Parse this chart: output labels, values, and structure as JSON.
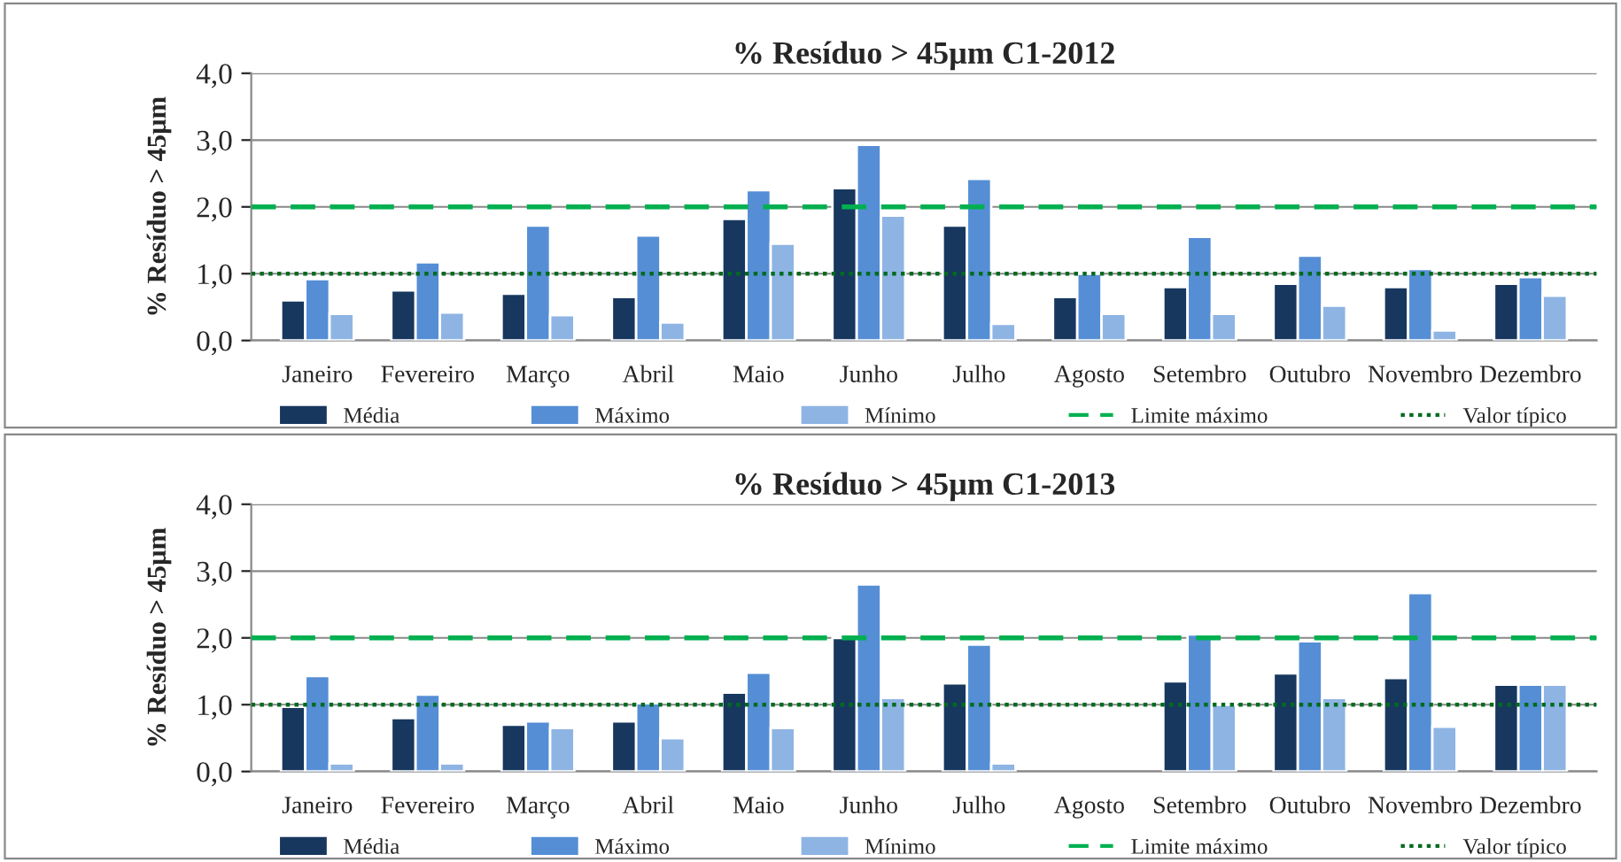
{
  "chart_data": [
    {
      "type": "bar",
      "title": "% Resíduo > 45µm C1-2012",
      "ylabel": "% Resíduo > 45µm",
      "categories": [
        "Janeiro",
        "Fevereiro",
        "Março",
        "Abril",
        "Maio",
        "Junho",
        "Julho",
        "Agosto",
        "Setembro",
        "Outubro",
        "Novembro",
        "Dezembro"
      ],
      "series": [
        {
          "name": "Média",
          "color": "#17375e",
          "values": [
            0.6,
            0.75,
            0.7,
            0.65,
            1.82,
            2.28,
            1.72,
            0.65,
            0.8,
            0.85,
            0.8,
            0.85
          ]
        },
        {
          "name": "Máximo",
          "color": "#558ed5",
          "values": [
            0.92,
            1.17,
            1.72,
            1.57,
            2.25,
            2.93,
            2.42,
            1.0,
            1.55,
            1.27,
            1.07,
            0.95
          ]
        },
        {
          "name": "Mínimo",
          "color": "#8eb4e3",
          "values": [
            0.4,
            0.42,
            0.38,
            0.27,
            1.45,
            1.87,
            0.25,
            0.4,
            0.4,
            0.52,
            0.15,
            0.67
          ]
        }
      ],
      "ref_lines": [
        {
          "axis": "y",
          "value": 2.0,
          "label": "Limite máximo",
          "color": "#00b050",
          "line_style": "dashed"
        },
        {
          "axis": "y",
          "value": 1.0,
          "label": "Valor típico",
          "color": "#006b1f",
          "line_style": "dotted"
        }
      ],
      "ylim": [
        0,
        4
      ],
      "yticks": [
        {
          "value": 0,
          "label": "0,0"
        },
        {
          "value": 1,
          "label": "1,0"
        },
        {
          "value": 2,
          "label": "2,0"
        },
        {
          "value": 3,
          "label": "3,0"
        },
        {
          "value": 4,
          "label": "4,0"
        }
      ],
      "grid": "y",
      "legend": "bottom"
    },
    {
      "type": "bar",
      "title": "% Resíduo > 45µm C1-2013",
      "ylabel": "% Resíduo > 45µm",
      "categories": [
        "Janeiro",
        "Fevereiro",
        "Março",
        "Abril",
        "Maio",
        "Junho",
        "Julho",
        "Agosto",
        "Setembro",
        "Outubro",
        "Novembro",
        "Dezembro"
      ],
      "series": [
        {
          "name": "Média",
          "color": "#17375e",
          "values": [
            0.97,
            0.8,
            0.7,
            0.75,
            1.18,
            2.0,
            1.32,
            null,
            1.35,
            1.47,
            1.4,
            1.3
          ]
        },
        {
          "name": "Máximo",
          "color": "#558ed5",
          "values": [
            1.43,
            1.15,
            0.75,
            1.02,
            1.48,
            2.8,
            1.9,
            null,
            2.05,
            1.95,
            2.67,
            1.3
          ]
        },
        {
          "name": "Mínimo",
          "color": "#8eb4e3",
          "values": [
            0.12,
            0.12,
            0.65,
            0.5,
            0.65,
            1.1,
            0.12,
            null,
            1.0,
            1.1,
            0.67,
            1.3
          ]
        }
      ],
      "ref_lines": [
        {
          "axis": "y",
          "value": 2.0,
          "label": "Limite máximo",
          "color": "#00b050",
          "line_style": "dashed"
        },
        {
          "axis": "y",
          "value": 1.0,
          "label": "Valor típico",
          "color": "#006b1f",
          "line_style": "dotted"
        }
      ],
      "ylim": [
        0,
        4
      ],
      "yticks": [
        {
          "value": 0,
          "label": "0,0"
        },
        {
          "value": 1,
          "label": "1,0"
        },
        {
          "value": 2,
          "label": "2,0"
        },
        {
          "value": 3,
          "label": "3,0"
        },
        {
          "value": 4,
          "label": "4,0"
        }
      ],
      "grid": "y",
      "legend": "bottom"
    }
  ]
}
